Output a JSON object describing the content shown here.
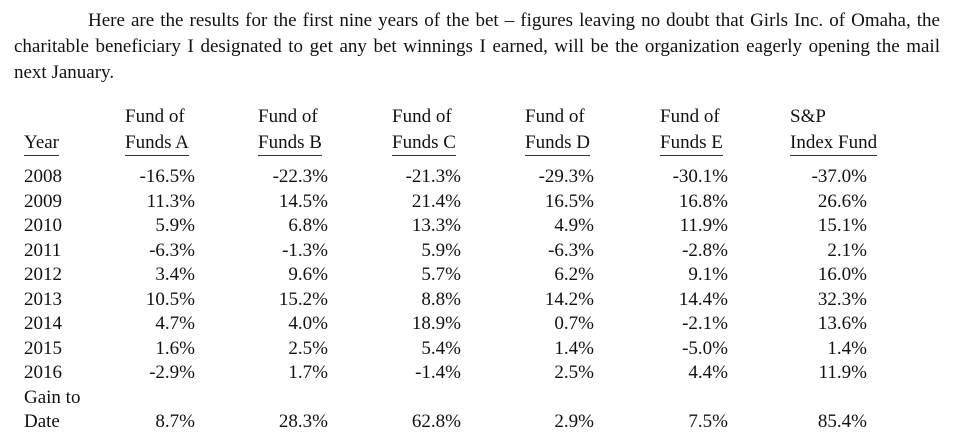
{
  "paragraph": "Here are the results for the first nine years of the bet – figures leaving no doubt that Girls Inc. of Omaha, the charitable beneficiary I designated to get any bet winnings I earned, will be the organization eagerly opening the mail next January.",
  "table": {
    "year_header": "Year",
    "headers": [
      [
        "Fund of",
        "Funds A"
      ],
      [
        "Fund of",
        "Funds B"
      ],
      [
        "Fund of",
        "Funds C"
      ],
      [
        "Fund of",
        "Funds D"
      ],
      [
        "Fund of",
        "Funds E"
      ],
      [
        "S&P",
        "Index Fund"
      ]
    ],
    "rows": [
      {
        "year": "2008",
        "values": [
          "-16.5%",
          "-22.3%",
          "-21.3%",
          "-29.3%",
          "-30.1%",
          "-37.0%"
        ]
      },
      {
        "year": "2009",
        "values": [
          "11.3%",
          "14.5%",
          "21.4%",
          "16.5%",
          "16.8%",
          "26.6%"
        ]
      },
      {
        "year": "2010",
        "values": [
          "5.9%",
          "6.8%",
          "13.3%",
          "4.9%",
          "11.9%",
          "15.1%"
        ]
      },
      {
        "year": "2011",
        "values": [
          "-6.3%",
          "-1.3%",
          "5.9%",
          "-6.3%",
          "-2.8%",
          "2.1%"
        ]
      },
      {
        "year": "2012",
        "values": [
          "3.4%",
          "9.6%",
          "5.7%",
          "6.2%",
          "9.1%",
          "16.0%"
        ]
      },
      {
        "year": "2013",
        "values": [
          "10.5%",
          "15.2%",
          "8.8%",
          "14.2%",
          "14.4%",
          "32.3%"
        ]
      },
      {
        "year": "2014",
        "values": [
          "4.7%",
          "4.0%",
          "18.9%",
          "0.7%",
          "-2.1%",
          "13.6%"
        ]
      },
      {
        "year": "2015",
        "values": [
          "1.6%",
          "2.5%",
          "5.4%",
          "1.4%",
          "-5.0%",
          "1.4%"
        ]
      },
      {
        "year": "2016",
        "values": [
          "-2.9%",
          "1.7%",
          "-1.4%",
          "2.5%",
          "4.4%",
          "11.9%"
        ]
      }
    ],
    "total": {
      "label": [
        "Gain to",
        "Date"
      ],
      "values": [
        "8.7%",
        "28.3%",
        "62.8%",
        "2.9%",
        "7.5%",
        "85.4%"
      ]
    }
  }
}
